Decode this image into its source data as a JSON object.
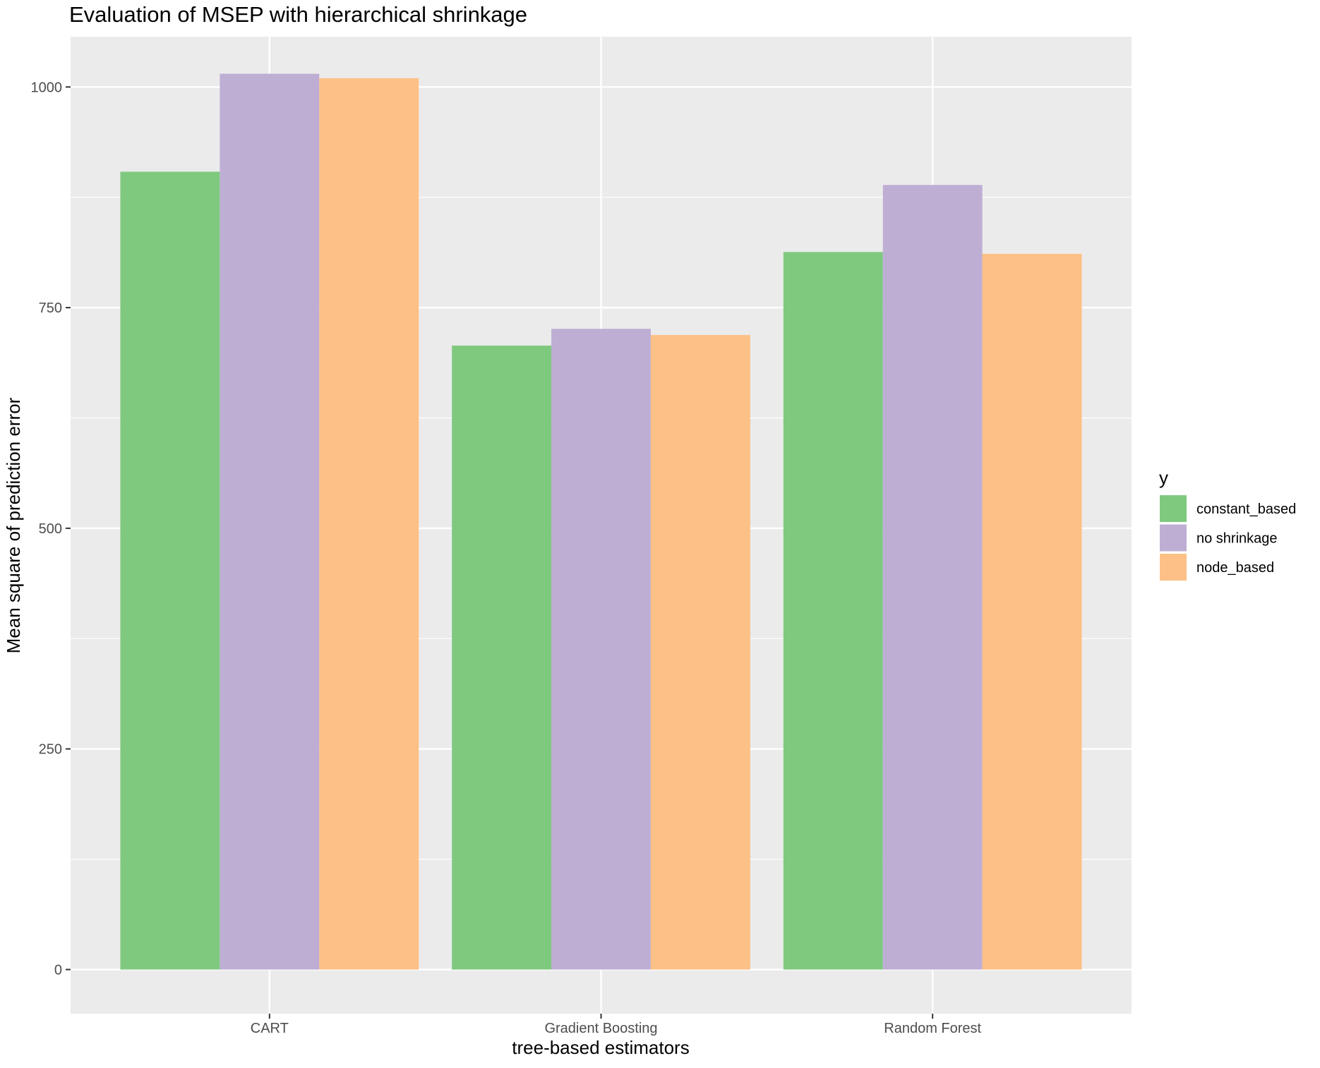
{
  "chart_data": {
    "type": "bar",
    "title": "Evaluation of MSEP with hierarchical shrinkage",
    "xlabel": "tree-based estimators",
    "ylabel": "Mean square of prediction error",
    "categories": [
      "CART",
      "Gradient Boosting",
      "Random Forest"
    ],
    "series": [
      {
        "name": "constant_based",
        "color": "#7FC97F",
        "values": [
          904,
          707,
          813
        ]
      },
      {
        "name": "no shrinkage",
        "color": "#BEAED4",
        "values": [
          1015,
          726,
          889
        ]
      },
      {
        "name": "node_based",
        "color": "#FDC086",
        "values": [
          1010,
          719,
          811
        ]
      }
    ],
    "ylim": [
      -50,
      1057
    ],
    "yticks": [
      0,
      250,
      500,
      750,
      1000
    ],
    "ytick_labels": [
      "0",
      "250",
      "500",
      "750",
      "1000"
    ],
    "legend": {
      "title": "y",
      "position": "right"
    },
    "grid": true,
    "panel_background": "#EBEBEB"
  }
}
